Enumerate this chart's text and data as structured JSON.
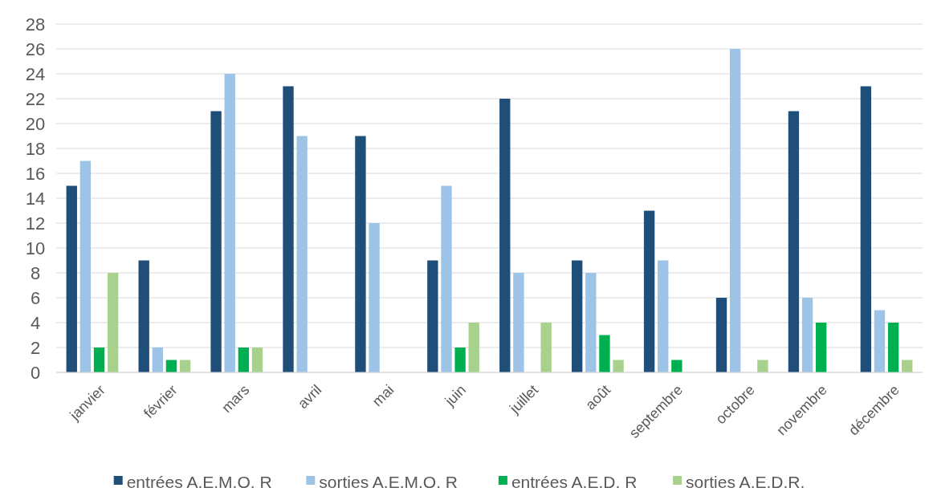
{
  "chart_data": {
    "type": "bar",
    "categories": [
      "janvier",
      "février",
      "mars",
      "avril",
      "mai",
      "juin",
      "juillet",
      "août",
      "septembre",
      "octobre",
      "novembre",
      "décembre"
    ],
    "series": [
      {
        "name": "entrées A.E.M.O. R",
        "color": "#1f4e79",
        "values": [
          15,
          9,
          21,
          23,
          19,
          9,
          22,
          9,
          13,
          6,
          21,
          23
        ]
      },
      {
        "name": "sorties A.E.M.O. R",
        "color": "#9dc3e6",
        "values": [
          17,
          2,
          24,
          19,
          12,
          15,
          8,
          8,
          9,
          26,
          6,
          5
        ]
      },
      {
        "name": "entrées A.E.D. R",
        "color": "#00b050",
        "values": [
          2,
          1,
          2,
          0,
          0,
          2,
          0,
          3,
          1,
          0,
          4,
          4
        ]
      },
      {
        "name": "sorties A.E.D.R.",
        "color": "#a9d18e",
        "values": [
          8,
          1,
          2,
          0,
          0,
          4,
          4,
          1,
          0,
          1,
          0,
          1
        ]
      }
    ],
    "ylim": [
      0,
      28
    ],
    "yticks": [
      0,
      2,
      4,
      6,
      8,
      10,
      12,
      14,
      16,
      18,
      20,
      22,
      24,
      26,
      28
    ],
    "grid": "y",
    "legend": "bottom"
  }
}
